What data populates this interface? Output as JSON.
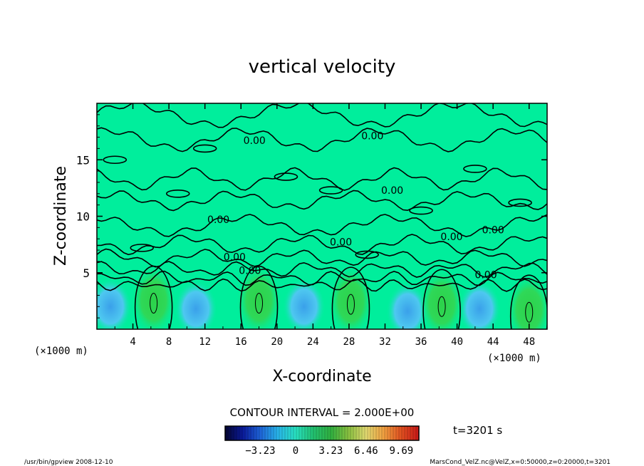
{
  "chart_data": {
    "type": "heatmap",
    "title": "vertical velocity",
    "xlabel": "X-coordinate",
    "ylabel": "Z-coordinate",
    "x_unit": "(×1000 m)",
    "y_unit": "(×1000 m)",
    "xlim": [
      0,
      50
    ],
    "ylim": [
      0,
      20
    ],
    "x_ticks": [
      "4",
      "8",
      "12",
      "16",
      "20",
      "24",
      "28",
      "32",
      "36",
      "40",
      "44",
      "48"
    ],
    "y_ticks": [
      "5",
      "10",
      "15"
    ],
    "contour_interval_label": "CONTOUR INTERVAL = 2.000E+00",
    "contour_labels": [
      {
        "text": "0.00",
        "x": 17.5,
        "z": 16.4
      },
      {
        "text": "0.00",
        "x": 30.6,
        "z": 16.8
      },
      {
        "text": "0.00",
        "x": 32.8,
        "z": 12.0
      },
      {
        "text": "0.00",
        "x": 13.5,
        "z": 9.4
      },
      {
        "text": "0.00",
        "x": 44.0,
        "z": 8.5
      },
      {
        "text": "0.00",
        "x": 39.4,
        "z": 7.9
      },
      {
        "text": "0.00",
        "x": 27.1,
        "z": 7.4
      },
      {
        "text": "0.00",
        "x": 15.3,
        "z": 6.1
      },
      {
        "text": "0.00",
        "x": 17.0,
        "z": 4.9
      },
      {
        "text": "0.00",
        "x": 43.2,
        "z": 4.5
      }
    ],
    "updraft_centers": [
      {
        "x": 6.3,
        "z": 2.3
      },
      {
        "x": 18.0,
        "z": 2.3
      },
      {
        "x": 28.2,
        "z": 2.2
      },
      {
        "x": 38.3,
        "z": 2.0
      },
      {
        "x": 48.0,
        "z": 1.5
      }
    ],
    "downdraft_centers": [
      {
        "x": 1.5,
        "z": 2.0
      },
      {
        "x": 11.0,
        "z": 1.8
      },
      {
        "x": 23.0,
        "z": 2.0
      },
      {
        "x": 34.5,
        "z": 1.6
      },
      {
        "x": 42.5,
        "z": 1.8
      }
    ],
    "colorbar": {
      "tick_labels": [
        "−3.23",
        "0",
        "3.23",
        "6.46",
        "9.69"
      ],
      "tick_values": [
        -3.23,
        0,
        3.23,
        6.46,
        9.69
      ],
      "range": [
        -6.46,
        11.3
      ],
      "colors": [
        "#050530",
        "#0a1a9a",
        "#1e64d8",
        "#28b4e8",
        "#28e0c0",
        "#22c070",
        "#30b040",
        "#88c040",
        "#e0d870",
        "#f0a040",
        "#e05020",
        "#c81818"
      ]
    },
    "background_color": "#00ee9c",
    "time_label": "t=3201 s"
  },
  "footer": {
    "left": "/usr/bin/gpview   2008-12-10",
    "right": "MarsCond_VelZ.nc@VelZ,x=0:50000,z=0:20000,t=3201"
  }
}
